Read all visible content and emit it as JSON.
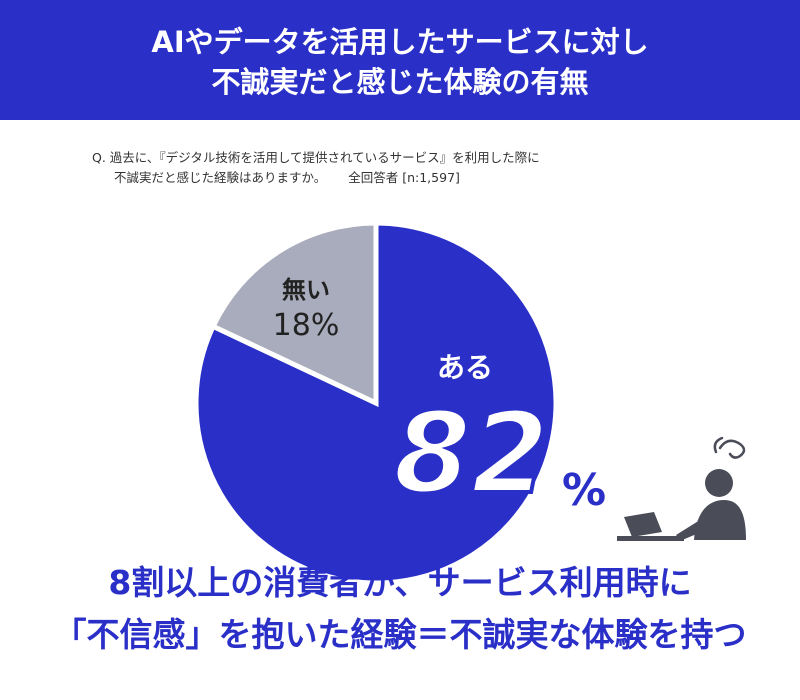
{
  "header": {
    "title_line1": "AIやデータを活用したサービスに対し",
    "title_line2": "不誠実だと感じた体験の有無"
  },
  "question": {
    "line1": "Q. 過去に、『デジタル技術を活用して提供されているサービス』を利用した際に",
    "line2": "不誠実だと感じた経験はありますか。",
    "respondents": "全回答者 [n:1,597]"
  },
  "chart_data": {
    "type": "pie",
    "slices": [
      {
        "label": "ある",
        "value": 82,
        "value_text": "82",
        "unit": "%",
        "color": "#2a2fc8"
      },
      {
        "label": "無い",
        "value": 18,
        "value_text": "18%",
        "color": "#a9acbc"
      }
    ]
  },
  "bottom": {
    "line1": "8割以上の消費者が、サービス利用時に",
    "line2": "「不信感」を抱いた経験＝不誠実な体験を持つ"
  },
  "colors": {
    "brand_blue": "#2a2fc8",
    "gray_slice": "#a9acbc",
    "icon_gray": "#4a4c58"
  }
}
